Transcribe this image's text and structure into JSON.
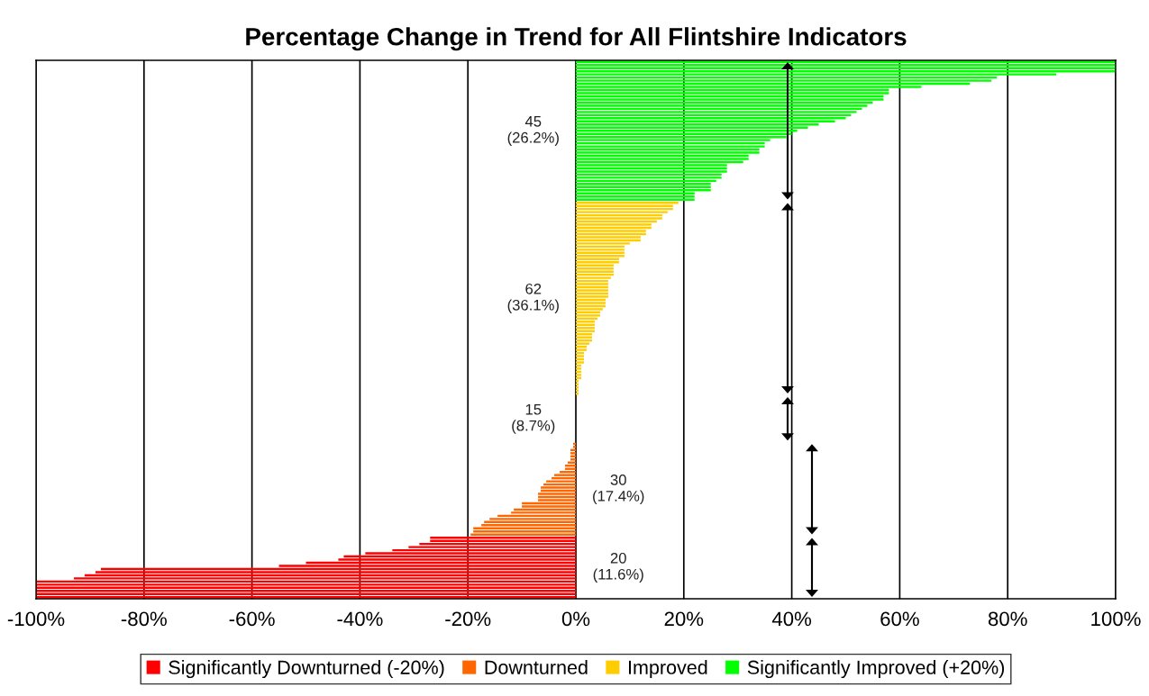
{
  "chart_data": {
    "type": "bar",
    "orientation": "horizontal",
    "title": "Percentage Change in Trend for All Flintshire Indicators",
    "categories": [
      null,
      null,
      null,
      null,
      null,
      null,
      null,
      null,
      null,
      null,
      null,
      null,
      null,
      null,
      null,
      null,
      null,
      null,
      null,
      null,
      null,
      null,
      null,
      null,
      null,
      null,
      null,
      null,
      null,
      null,
      null,
      null,
      null,
      null,
      null,
      null,
      null,
      null,
      null,
      null,
      null,
      null,
      null,
      null,
      null,
      null,
      null,
      null,
      null,
      null,
      null,
      null,
      null,
      null,
      null,
      null,
      null,
      null,
      null,
      null,
      null,
      null,
      null,
      null,
      null,
      null,
      null,
      null,
      null,
      null,
      null,
      null,
      null,
      null,
      null,
      null,
      null,
      null,
      null,
      null,
      null,
      null,
      null,
      null,
      null,
      null,
      null,
      null,
      null,
      null,
      null,
      null,
      null,
      null,
      null,
      null,
      null,
      null,
      null,
      null,
      null,
      null,
      null,
      null,
      null,
      null,
      null,
      null,
      null,
      null,
      null,
      null,
      null,
      null,
      null,
      null,
      null,
      null,
      null,
      null,
      null,
      null,
      null,
      null,
      null,
      null,
      null,
      null,
      null,
      null,
      null,
      null,
      null,
      null,
      null,
      null,
      null,
      null,
      null,
      null,
      null,
      null,
      null,
      null,
      null,
      null,
      null,
      null,
      null,
      null,
      null,
      null,
      null,
      null,
      null,
      null,
      null,
      null,
      null,
      null,
      null,
      null,
      null,
      null,
      null,
      null,
      null,
      null,
      null,
      null,
      null,
      null
    ],
    "series": [
      {
        "name": "Significantly Downturned (-20%)",
        "color": "#ff0000",
        "values": [
          null,
          null,
          null,
          null,
          null,
          null,
          null,
          null,
          null,
          null,
          null,
          null,
          null,
          null,
          null,
          null,
          null,
          null,
          null,
          null,
          null,
          null,
          null,
          null,
          null,
          null,
          null,
          null,
          null,
          null,
          null,
          null,
          null,
          null,
          null,
          null,
          null,
          null,
          null,
          null,
          null,
          null,
          null,
          null,
          null,
          null,
          null,
          null,
          null,
          null,
          null,
          null,
          null,
          null,
          null,
          null,
          null,
          null,
          null,
          null,
          null,
          null,
          null,
          null,
          null,
          null,
          null,
          null,
          null,
          null,
          null,
          null,
          null,
          null,
          null,
          null,
          null,
          null,
          null,
          null,
          null,
          null,
          null,
          null,
          null,
          null,
          null,
          null,
          null,
          null,
          null,
          null,
          null,
          null,
          null,
          null,
          null,
          null,
          null,
          null,
          null,
          null,
          null,
          null,
          null,
          null,
          null,
          null,
          null,
          null,
          null,
          null,
          null,
          null,
          null,
          null,
          null,
          null,
          null,
          null,
          null,
          null,
          null,
          null,
          null,
          null,
          null,
          null,
          null,
          null,
          null,
          null,
          null,
          null,
          null,
          null,
          null,
          null,
          null,
          null,
          null,
          null,
          null,
          null,
          null,
          null,
          null,
          null,
          null,
          null,
          null,
          null,
          -27,
          -27,
          -29,
          -31,
          -34,
          -39,
          -43,
          -44,
          -50,
          -55,
          -88,
          -89,
          -91,
          -93,
          -100,
          -100,
          -100,
          -100,
          -100,
          -100
        ]
      },
      {
        "name": "Downturned",
        "color": "#ff6600",
        "values": [
          null,
          null,
          null,
          null,
          null,
          null,
          null,
          null,
          null,
          null,
          null,
          null,
          null,
          null,
          null,
          null,
          null,
          null,
          null,
          null,
          null,
          null,
          null,
          null,
          null,
          null,
          null,
          null,
          null,
          null,
          null,
          null,
          null,
          null,
          null,
          null,
          null,
          null,
          null,
          null,
          null,
          null,
          null,
          null,
          null,
          null,
          null,
          null,
          null,
          null,
          null,
          null,
          null,
          null,
          null,
          null,
          null,
          null,
          null,
          null,
          null,
          null,
          null,
          null,
          null,
          null,
          null,
          null,
          null,
          null,
          null,
          null,
          null,
          null,
          null,
          null,
          null,
          null,
          null,
          null,
          null,
          null,
          null,
          null,
          null,
          null,
          null,
          null,
          null,
          null,
          null,
          null,
          null,
          null,
          null,
          null,
          null,
          null,
          null,
          null,
          null,
          null,
          null,
          null,
          null,
          null,
          null,
          null,
          null,
          null,
          null,
          null,
          null,
          null,
          null,
          null,
          null,
          null,
          null,
          null,
          null,
          null,
          -0.5,
          -0.5,
          -1,
          -1,
          -1,
          -1,
          -1.5,
          -2,
          -2,
          -3,
          -4,
          -4.5,
          -5.5,
          -6,
          -6.5,
          -6.5,
          -7,
          -7,
          -7,
          -10,
          -10,
          -11.5,
          -12,
          -14.5,
          -16,
          -17,
          -17.5,
          -19,
          -19,
          -19.5,
          null,
          null,
          null,
          null,
          null,
          null,
          null,
          null,
          null,
          null,
          null,
          null,
          null,
          null,
          null,
          null,
          null,
          null,
          null,
          null
        ]
      },
      {
        "name": "Improved",
        "color": "#ffcc00",
        "values": [
          null,
          null,
          null,
          null,
          null,
          null,
          null,
          null,
          null,
          null,
          null,
          null,
          null,
          null,
          null,
          null,
          null,
          null,
          null,
          null,
          null,
          null,
          null,
          null,
          null,
          null,
          null,
          null,
          null,
          null,
          null,
          null,
          null,
          null,
          null,
          null,
          null,
          null,
          null,
          null,
          null,
          null,
          null,
          null,
          null,
          19,
          18,
          18,
          17,
          16,
          16,
          15,
          14,
          14,
          13,
          13,
          12,
          12,
          10,
          9,
          9,
          9,
          9,
          8,
          8,
          7,
          7,
          7,
          7,
          6.5,
          6,
          6,
          6,
          6,
          6,
          6,
          5.5,
          5.5,
          5.5,
          5,
          4.5,
          4.5,
          4,
          3.5,
          3.5,
          3.5,
          3.5,
          3,
          3,
          3,
          2.5,
          2,
          2,
          1.5,
          1.5,
          1.5,
          1.5,
          1,
          1,
          1,
          1,
          1,
          0.5,
          0.5,
          0.5,
          0.5,
          0.5,
          null,
          null,
          null,
          null,
          null,
          null,
          null,
          null,
          null,
          null,
          null,
          null,
          null,
          null,
          null,
          null,
          null,
          null,
          null,
          null,
          null,
          null,
          null,
          null,
          null,
          null,
          null,
          null,
          null,
          null,
          null,
          null,
          null,
          null,
          null,
          null,
          null,
          null,
          null,
          null,
          null,
          null,
          null,
          null,
          null,
          null,
          null,
          null,
          null,
          null,
          null,
          null,
          null,
          null,
          null,
          null,
          null,
          null,
          null,
          null,
          null,
          null,
          null,
          null,
          null
        ]
      },
      {
        "name": "Significantly Improved (+20%)",
        "color": "#00ff00",
        "values": [
          100,
          100,
          100,
          100,
          89,
          78,
          77,
          73,
          64,
          58,
          58,
          57,
          57,
          55,
          54,
          53,
          52,
          51,
          50,
          48,
          45,
          43,
          41,
          40,
          39,
          36,
          35,
          35,
          34,
          34,
          32,
          32,
          31,
          28,
          28,
          28,
          27,
          27,
          26,
          25,
          25,
          25,
          22,
          22,
          22,
          null,
          null,
          null,
          null,
          null,
          null,
          null,
          null,
          null,
          null,
          null,
          null,
          null,
          null,
          null,
          null,
          null,
          null,
          null,
          null,
          null,
          null,
          null,
          null,
          null,
          null,
          null,
          null,
          null,
          null,
          null,
          null,
          null,
          null,
          null,
          null,
          null,
          null,
          null,
          null,
          null,
          null,
          null,
          null,
          null,
          null,
          null,
          null,
          null,
          null,
          null,
          null,
          null,
          null,
          null,
          null,
          null,
          null,
          null,
          null,
          null,
          null,
          null,
          null,
          null,
          null,
          null,
          null,
          null,
          null,
          null,
          null,
          null,
          null,
          null,
          null,
          null,
          null,
          null,
          null,
          null,
          null,
          null,
          null,
          null,
          null,
          null,
          null,
          null,
          null,
          null,
          null,
          null,
          null,
          null,
          null,
          null,
          null,
          null,
          null,
          null,
          null,
          null,
          null,
          null,
          null,
          null,
          null,
          null,
          null,
          null,
          null,
          null,
          null,
          null,
          null,
          null,
          null,
          null,
          null,
          null,
          null,
          null,
          null,
          null,
          null,
          null
        ]
      }
    ],
    "xlim": [
      -100,
      100
    ],
    "xticks": [
      {
        "value": -100,
        "label": "-100%"
      },
      {
        "value": -80,
        "label": "-80%"
      },
      {
        "value": -60,
        "label": "-60%"
      },
      {
        "value": -40,
        "label": "-40%"
      },
      {
        "value": -20,
        "label": "-20%"
      },
      {
        "value": 0,
        "label": "0%"
      },
      {
        "value": 20,
        "label": "20%"
      },
      {
        "value": 40,
        "label": "40%"
      },
      {
        "value": 60,
        "label": "60%"
      },
      {
        "value": 80,
        "label": "80%"
      },
      {
        "value": 100,
        "label": "100%"
      }
    ],
    "annotations": [
      "45\n(26.2%)",
      "62\n(36.1%)",
      "15\n(8.7%)",
      "30\n(17.4%)",
      "20\n(11.6%)"
    ],
    "grid": "x",
    "legend": "bottom",
    "tick_labels": "x"
  }
}
